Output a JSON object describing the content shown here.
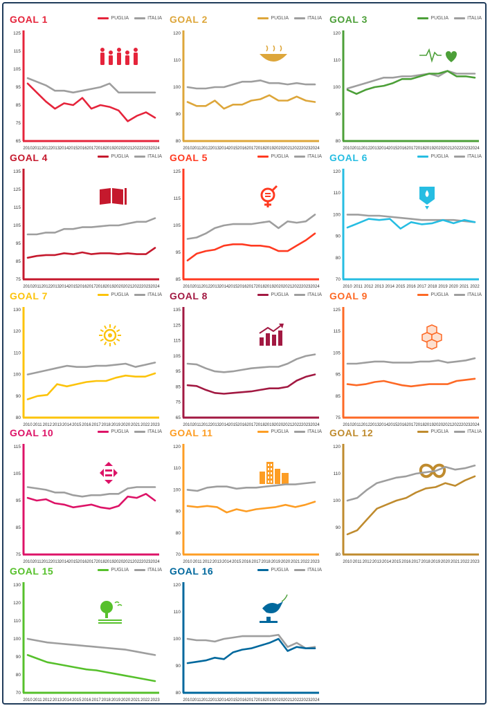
{
  "legend_puglia": "PUGLIA",
  "legend_italia": "ITALIA",
  "italia_color": "#9e9e9e",
  "chart_data": [
    {
      "type": "line",
      "title": "GOAL 1",
      "color": "#e5243b",
      "icon": "people-icon",
      "ylim": [
        65,
        125
      ],
      "yticks": [
        65,
        75,
        85,
        95,
        105,
        115,
        125
      ],
      "x": [
        "2010",
        "2011",
        "2012",
        "2013",
        "2014",
        "2015",
        "2016",
        "2017",
        "2018",
        "2019",
        "2020",
        "2021",
        "2022",
        "2023",
        "2024"
      ],
      "series": [
        {
          "name": "PUGLIA",
          "values": [
            97,
            92,
            87,
            83,
            86,
            85,
            89,
            83,
            85,
            84,
            82,
            76,
            79,
            81,
            78
          ]
        },
        {
          "name": "ITALIA",
          "values": [
            100,
            98,
            96,
            93,
            93,
            92,
            93,
            94,
            95,
            97,
            92,
            92,
            92,
            92,
            92
          ]
        }
      ]
    },
    {
      "type": "line",
      "title": "GOAL 2",
      "color": "#dda63a",
      "icon": "bowl-icon",
      "ylim": [
        80,
        120
      ],
      "yticks": [
        80,
        90,
        100,
        110,
        120
      ],
      "x": [
        "2010",
        "2011",
        "2012",
        "2013",
        "2014",
        "2015",
        "2016",
        "2017",
        "2018",
        "2019",
        "2020",
        "2021",
        "2022",
        "2023",
        "2024"
      ],
      "series": [
        {
          "name": "PUGLIA",
          "values": [
            94.5,
            93,
            93,
            95,
            92,
            93.5,
            93.5,
            95,
            95.5,
            97,
            95,
            95,
            96.5,
            95,
            94.5
          ]
        },
        {
          "name": "ITALIA",
          "values": [
            100,
            99.5,
            99.5,
            100,
            100,
            101,
            102,
            102,
            102.5,
            101.5,
            101.5,
            101,
            101.5,
            101,
            101
          ]
        }
      ]
    },
    {
      "type": "line",
      "title": "GOAL 3",
      "color": "#4c9f38",
      "icon": "heartbeat-icon",
      "ylim": [
        80,
        120
      ],
      "yticks": [
        80,
        90,
        100,
        110,
        120
      ],
      "x": [
        "2010",
        "2011",
        "2012",
        "2013",
        "2014",
        "2015",
        "2016",
        "2017",
        "2018",
        "2019",
        "2020",
        "2021",
        "2022",
        "2023",
        "2024"
      ],
      "series": [
        {
          "name": "PUGLIA",
          "values": [
            99,
            97.5,
            99,
            100,
            100.5,
            101.5,
            103,
            103,
            104,
            105,
            105,
            106,
            104,
            104,
            103.5
          ]
        },
        {
          "name": "ITALIA",
          "values": [
            99.5,
            100.5,
            101.5,
            102.5,
            103.5,
            103.5,
            104,
            104,
            104.5,
            105,
            104,
            106,
            105,
            105,
            105
          ]
        }
      ]
    },
    {
      "type": "line",
      "title": "GOAL 4",
      "color": "#c5192d",
      "icon": "book-icon",
      "ylim": [
        75,
        135
      ],
      "yticks": [
        75,
        85,
        95,
        105,
        115,
        125,
        135
      ],
      "x": [
        "2010",
        "2011",
        "2012",
        "2013",
        "2014",
        "2015",
        "2016",
        "2017",
        "2018",
        "2019",
        "2020",
        "2021",
        "2022",
        "2023",
        "2024"
      ],
      "series": [
        {
          "name": "PUGLIA",
          "values": [
            87,
            88,
            88.5,
            88.5,
            89.5,
            89,
            90,
            89,
            89.5,
            89.5,
            89,
            89.5,
            89,
            89,
            92.5
          ]
        },
        {
          "name": "ITALIA",
          "values": [
            100,
            100,
            101,
            101,
            103,
            103,
            104,
            104,
            104.5,
            105,
            105,
            106,
            107,
            107,
            109
          ]
        }
      ]
    },
    {
      "type": "line",
      "title": "GOAL 5",
      "color": "#ff3a21",
      "icon": "gender-icon",
      "ylim": [
        85,
        125
      ],
      "yticks": [
        85,
        95,
        105,
        115,
        125
      ],
      "x": [
        "2010",
        "2011",
        "2012",
        "2013",
        "2014",
        "2015",
        "2016",
        "2017",
        "2018",
        "2019",
        "2020",
        "2021",
        "2022",
        "2023",
        "2024"
      ],
      "series": [
        {
          "name": "PUGLIA",
          "values": [
            92,
            94.5,
            95.5,
            96,
            97.5,
            98,
            98,
            97.5,
            97.5,
            97,
            95.5,
            95.5,
            97.5,
            99.5,
            102
          ]
        },
        {
          "name": "ITALIA",
          "values": [
            100,
            100.5,
            102,
            104,
            105,
            105.5,
            105.5,
            105.5,
            106,
            106.5,
            104,
            106.5,
            106,
            106.5,
            109
          ]
        }
      ]
    },
    {
      "type": "line",
      "title": "GOAL 6",
      "color": "#26bde2",
      "icon": "water-icon",
      "ylim": [
        70,
        120
      ],
      "yticks": [
        70,
        80,
        90,
        100,
        110,
        120
      ],
      "x": [
        "2010",
        "2011",
        "2012",
        "2013",
        "2014",
        "2015",
        "2016",
        "2017",
        "2018",
        "2019",
        "2020",
        "2021",
        "2022"
      ],
      "series": [
        {
          "name": "PUGLIA",
          "values": [
            94,
            96,
            98,
            97.5,
            98,
            93.5,
            96.5,
            95.5,
            96,
            97.5,
            96,
            97.5,
            96.5
          ]
        },
        {
          "name": "ITALIA",
          "values": [
            100,
            100,
            99.5,
            99.5,
            99,
            98.5,
            98,
            97.5,
            97.5,
            97.5,
            97.5,
            97,
            96.5
          ]
        }
      ]
    },
    {
      "type": "line",
      "title": "GOAL 7",
      "color": "#fcc30b",
      "icon": "sun-icon",
      "ylim": [
        80,
        130
      ],
      "yticks": [
        80,
        90,
        100,
        110,
        120,
        130
      ],
      "x": [
        "2010",
        "2011",
        "2012",
        "2013",
        "2014",
        "2015",
        "2016",
        "2017",
        "2018",
        "2019",
        "2020",
        "2021",
        "2022",
        "2023"
      ],
      "series": [
        {
          "name": "PUGLIA",
          "values": [
            88.5,
            90,
            90.5,
            95.5,
            94.5,
            95.5,
            96.5,
            97,
            97,
            98.5,
            99.5,
            99,
            99,
            100.5
          ]
        },
        {
          "name": "ITALIA",
          "values": [
            100,
            101,
            102,
            103,
            104,
            103.5,
            103.5,
            104,
            104,
            104.5,
            105,
            103.5,
            104.5,
            105.5
          ]
        }
      ]
    },
    {
      "type": "line",
      "title": "GOAL 8",
      "color": "#a21942",
      "icon": "growth-icon",
      "ylim": [
        65,
        135
      ],
      "yticks": [
        65,
        75,
        85,
        95,
        105,
        115,
        125,
        135
      ],
      "x": [
        "2010",
        "2011",
        "2012",
        "2013",
        "2014",
        "2015",
        "2016",
        "2017",
        "2018",
        "2019",
        "2020",
        "2021",
        "2022",
        "2023",
        "2024"
      ],
      "series": [
        {
          "name": "PUGLIA",
          "values": [
            86,
            85.5,
            83,
            81,
            80.5,
            81,
            81.5,
            82,
            83,
            84,
            84,
            85,
            89,
            91.5,
            93
          ]
        },
        {
          "name": "ITALIA",
          "values": [
            100,
            99.5,
            97,
            95,
            94.5,
            95,
            96,
            97,
            97.5,
            98,
            98,
            100,
            103,
            105,
            106
          ]
        }
      ]
    },
    {
      "type": "line",
      "title": "GOAL 9",
      "color": "#fd6925",
      "icon": "cubes-icon",
      "ylim": [
        75,
        125
      ],
      "yticks": [
        75,
        85,
        95,
        105,
        115,
        125
      ],
      "x": [
        "2010",
        "2011",
        "2012",
        "2013",
        "2014",
        "2015",
        "2016",
        "2017",
        "2018",
        "2019",
        "2020",
        "2021",
        "2022",
        "2023",
        "2024"
      ],
      "series": [
        {
          "name": "PUGLIA",
          "values": [
            90.5,
            90,
            90.5,
            91.5,
            92,
            91,
            90,
            89.5,
            90,
            90.5,
            90.5,
            90.5,
            92,
            92.5,
            93
          ]
        },
        {
          "name": "ITALIA",
          "values": [
            100,
            100,
            100.5,
            101,
            101,
            100.5,
            100.5,
            100.5,
            101,
            101,
            101.5,
            100.5,
            101,
            101.5,
            102.5
          ]
        }
      ]
    },
    {
      "type": "line",
      "title": "GOAL 10",
      "color": "#dd1367",
      "icon": "equality-icon",
      "ylim": [
        75,
        115
      ],
      "yticks": [
        75,
        85,
        95,
        105,
        115
      ],
      "x": [
        "2010",
        "2011",
        "2012",
        "2013",
        "2014",
        "2015",
        "2016",
        "2017",
        "2018",
        "2019",
        "2020",
        "2021",
        "2022",
        "2023",
        "2024"
      ],
      "series": [
        {
          "name": "PUGLIA",
          "values": [
            96,
            95,
            95.5,
            94,
            93.5,
            92.5,
            93,
            93.5,
            92.5,
            92,
            93,
            96.5,
            96,
            97.5,
            95
          ]
        },
        {
          "name": "ITALIA",
          "values": [
            100,
            99.5,
            99,
            98,
            98,
            97,
            96.5,
            97,
            97,
            97.5,
            97.5,
            99.5,
            100,
            100,
            100
          ]
        }
      ]
    },
    {
      "type": "line",
      "title": "GOAL 11",
      "color": "#fd9d24",
      "icon": "city-icon",
      "ylim": [
        70,
        120
      ],
      "yticks": [
        70,
        80,
        90,
        100,
        110,
        120
      ],
      "x": [
        "2010",
        "2011",
        "2012",
        "2013",
        "2014",
        "2015",
        "2016",
        "2017",
        "2018",
        "2019",
        "2020",
        "2021",
        "2022",
        "2023"
      ],
      "series": [
        {
          "name": "PUGLIA",
          "values": [
            92.5,
            92,
            92.5,
            92,
            89.5,
            91,
            90,
            91,
            91.5,
            92,
            93,
            92,
            93,
            94.5
          ]
        },
        {
          "name": "ITALIA",
          "values": [
            100,
            99.5,
            101,
            101.5,
            101.5,
            100.5,
            101,
            101,
            101.5,
            102,
            102.5,
            102.5,
            103,
            103.5
          ]
        }
      ]
    },
    {
      "type": "line",
      "title": "GOAL 12",
      "color": "#bf8b2e",
      "icon": "infinity-icon",
      "ylim": [
        80,
        120
      ],
      "yticks": [
        80,
        90,
        100,
        110,
        120
      ],
      "x": [
        "2010",
        "2011",
        "2012",
        "2013",
        "2014",
        "2015",
        "2016",
        "2017",
        "2018",
        "2019",
        "2020",
        "2021",
        "2022",
        "2023"
      ],
      "series": [
        {
          "name": "PUGLIA",
          "values": [
            87.5,
            89,
            93,
            97,
            98.5,
            100,
            101,
            103,
            104.5,
            105,
            106.5,
            105.5,
            107.5,
            109
          ]
        },
        {
          "name": "ITALIA",
          "values": [
            100,
            101,
            104,
            106.5,
            107.5,
            108.5,
            109,
            110,
            110.5,
            111,
            112.5,
            111.5,
            112,
            113
          ]
        }
      ]
    },
    {
      "type": "line",
      "title": "GOAL 15",
      "color": "#56c02b",
      "icon": "tree-icon",
      "ylim": [
        70,
        130
      ],
      "yticks": [
        70,
        80,
        90,
        100,
        110,
        120,
        130
      ],
      "x": [
        "2010",
        "2011",
        "2012",
        "2013",
        "2014",
        "2015",
        "2016",
        "2017",
        "2018",
        "2019",
        "2020",
        "2021",
        "2022",
        "2023"
      ],
      "series": [
        {
          "name": "PUGLIA",
          "values": [
            91,
            89,
            87,
            86,
            85,
            84,
            83,
            82.5,
            81.5,
            80.5,
            79.5,
            78.5,
            77.5,
            76.5
          ]
        },
        {
          "name": "ITALIA",
          "values": [
            100,
            99,
            98,
            97.5,
            97,
            96.5,
            96,
            95.5,
            95,
            94.5,
            94,
            93,
            92,
            91
          ]
        }
      ]
    },
    {
      "type": "line",
      "title": "GOAL 16",
      "color": "#00689d",
      "icon": "dove-icon",
      "ylim": [
        80,
        120
      ],
      "yticks": [
        80,
        90,
        100,
        110,
        120
      ],
      "x": [
        "2010",
        "2011",
        "2012",
        "2013",
        "2014",
        "2015",
        "2016",
        "2017",
        "2018",
        "2019",
        "2020",
        "2021",
        "2022",
        "2023",
        "2024"
      ],
      "series": [
        {
          "name": "PUGLIA",
          "values": [
            91,
            91.5,
            92,
            93,
            92.5,
            95,
            96,
            96.5,
            97.5,
            98.5,
            100,
            95.5,
            97,
            96.5,
            96.5
          ]
        },
        {
          "name": "ITALIA",
          "values": [
            100,
            99.5,
            99.5,
            99,
            100,
            100.5,
            101,
            101,
            101,
            101,
            101.5,
            97,
            98.5,
            96.5,
            97
          ]
        }
      ]
    }
  ]
}
